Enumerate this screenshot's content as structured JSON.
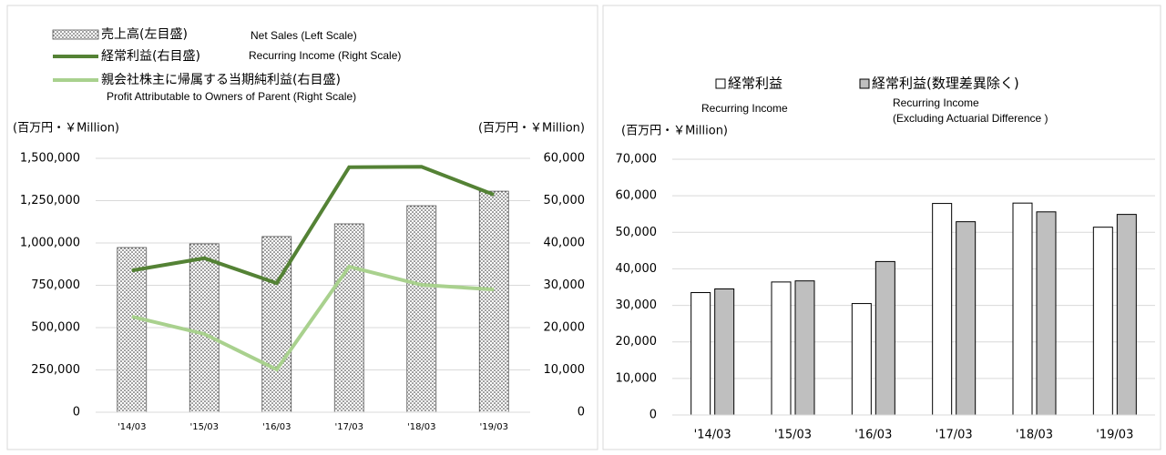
{
  "chart_data": [
    {
      "type": "combo",
      "ylabel": "(百万円・￥Million)",
      "y2label": "(百万円・￥Million)",
      "categories": [
        "'14/03",
        "'15/03",
        "'16/03",
        "'17/03",
        "'18/03",
        "'19/03"
      ],
      "series": [
        {
          "name": "売上高(左目盛)",
          "label_en": "Net Sales (Left Scale)",
          "kind": "bar",
          "color": "#555555",
          "values": [
            973000,
            995000,
            1038000,
            1113000,
            1220000,
            1306000
          ]
        },
        {
          "name": "経常利益(右目盛)",
          "label_en": "Recurring Income (Right Scale)",
          "kind": "line",
          "axis": "y2",
          "color": "#548235",
          "values": [
            33500,
            36400,
            30500,
            57900,
            58000,
            51400
          ]
        },
        {
          "name": "親会社株主に帰属する当期純利益(右目盛)",
          "label_en": "Profit Attributable to Owners of Parent (Right Scale)",
          "kind": "line",
          "axis": "y2",
          "color": "#a9d18e",
          "values": [
            22600,
            18500,
            10100,
            34400,
            30100,
            29000
          ]
        }
      ],
      "ylim": [
        0,
        1500000
      ],
      "yticks": [
        0,
        {
          "value": 250000,
          "label": "250,000"
        },
        {
          "value": 500000,
          "label": "500,000"
        },
        {
          "value": 750000,
          "label": "750,000"
        },
        {
          "value": 1000000,
          "label": "1,000,000"
        },
        {
          "value": 1250000,
          "label": "1,250,000"
        },
        {
          "value": 1500000,
          "label": "1,500,000"
        }
      ],
      "y2lim": [
        0,
        60000
      ],
      "y2ticks": [
        0,
        {
          "value": 10000,
          "label": "10,000"
        },
        {
          "value": 20000,
          "label": "20,000"
        },
        {
          "value": 30000,
          "label": "30,000"
        },
        {
          "value": 40000,
          "label": "40,000"
        },
        {
          "value": 50000,
          "label": "50,000"
        },
        {
          "value": 60000,
          "label": "60,000"
        }
      ],
      "grid": true
    },
    {
      "type": "bar",
      "ylabel": "(百万円・￥Million)",
      "categories": [
        "'14/03",
        "'15/03",
        "'16/03",
        "'17/03",
        "'18/03",
        "'19/03"
      ],
      "series": [
        {
          "name": "経常利益",
          "label_en": [
            "Recurring Income"
          ],
          "color": "#ffffff",
          "values": [
            33500,
            36400,
            30500,
            57900,
            58000,
            51400
          ]
        },
        {
          "name": "経常利益(数理差異除く)",
          "label_en": [
            "Recurring Income",
            "(Excluding Actuarial Difference )"
          ],
          "color": "#bfbfbf",
          "values": [
            34500,
            36700,
            42000,
            52900,
            55600,
            54900
          ]
        }
      ],
      "ylim": [
        0,
        70000
      ],
      "yticks": [
        0,
        {
          "value": 10000,
          "label": "10,000"
        },
        {
          "value": 20000,
          "label": "20,000"
        },
        {
          "value": 30000,
          "label": "30,000"
        },
        {
          "value": 40000,
          "label": "40,000"
        },
        {
          "value": 50000,
          "label": "50,000"
        },
        {
          "value": 60000,
          "label": "60,000"
        },
        {
          "value": 70000,
          "label": "70,000"
        }
      ],
      "grid": true
    }
  ]
}
